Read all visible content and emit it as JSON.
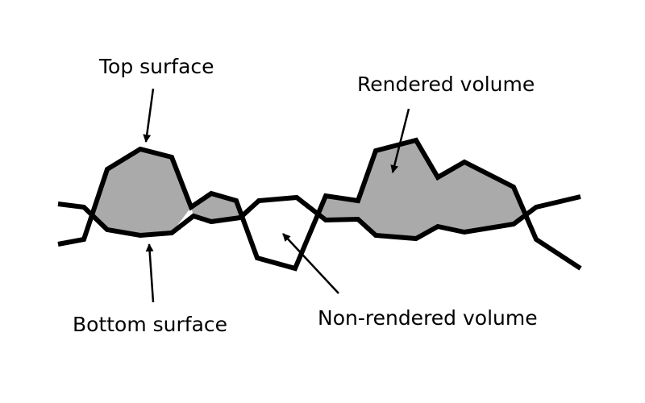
{
  "labels": {
    "top_surface": "Top surface",
    "rendered_volume": "Rendered volume",
    "bottom_surface": "Bottom surface",
    "non_rendered_volume": "Non-rendered volume"
  },
  "colors": {
    "rendered_fill": "#aaaaaa",
    "stroke": "#000000",
    "background": "#ffffff"
  }
}
